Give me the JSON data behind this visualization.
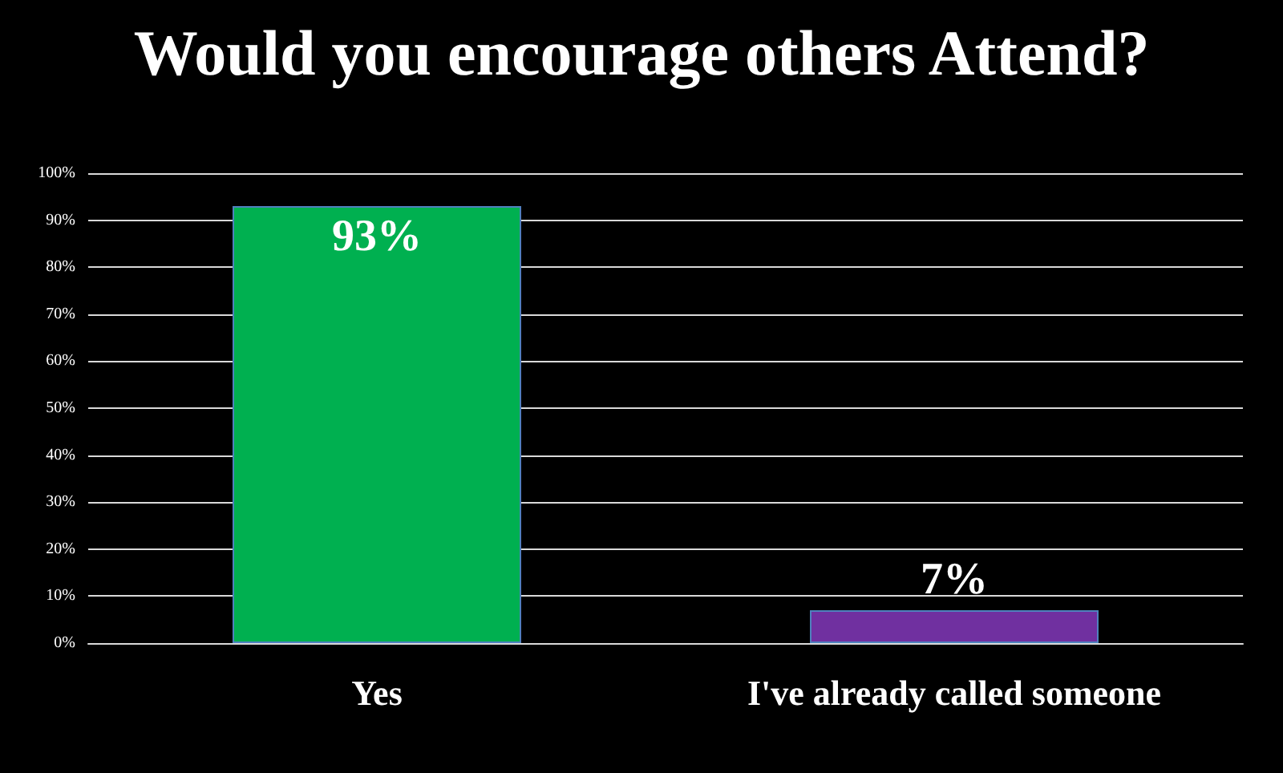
{
  "chart_data": {
    "type": "bar",
    "title": "Would you encourage others Attend?",
    "categories": [
      "Yes",
      "I've already called someone"
    ],
    "values": [
      93,
      7
    ],
    "colors": [
      "#00b050",
      "#7030a0"
    ],
    "value_labels": [
      "93%",
      "7%"
    ],
    "ylim": [
      0,
      100
    ],
    "yticks": [
      {
        "value": 0,
        "label": "0%"
      },
      {
        "value": 10,
        "label": "10%"
      },
      {
        "value": 20,
        "label": "20%"
      },
      {
        "value": 30,
        "label": "30%"
      },
      {
        "value": 40,
        "label": "40%"
      },
      {
        "value": 50,
        "label": "50%"
      },
      {
        "value": 60,
        "label": "60%"
      },
      {
        "value": 70,
        "label": "70%"
      },
      {
        "value": 80,
        "label": "80%"
      },
      {
        "value": 90,
        "label": "90%"
      },
      {
        "value": 100,
        "label": "100%"
      }
    ],
    "grid": "y"
  }
}
